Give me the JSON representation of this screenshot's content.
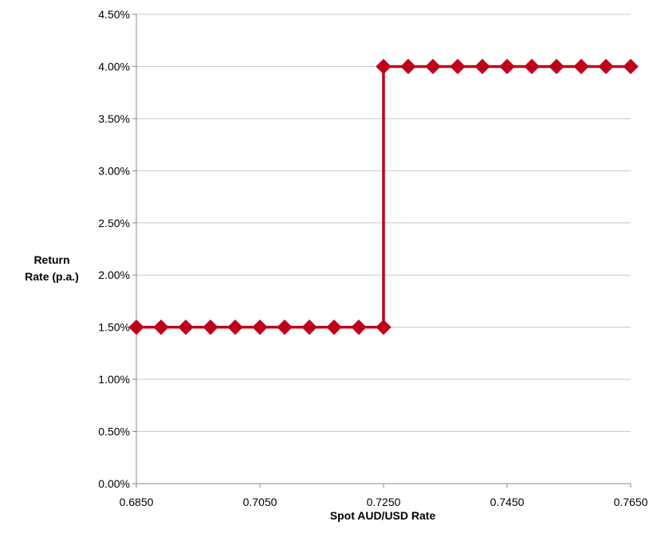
{
  "chart_data": {
    "type": "line",
    "title": "",
    "xlabel": "Spot AUD/USD Rate",
    "ylabel_line1": "Return",
    "ylabel_line2": "Rate (p.a.)",
    "xlim": [
      0.685,
      0.765
    ],
    "ylim": [
      0,
      0.045
    ],
    "x_ticks": [
      0.685,
      0.705,
      0.725,
      0.745,
      0.765
    ],
    "x_tick_labels": [
      "0.6850",
      "0.7050",
      "0.7250",
      "0.7450",
      "0.7650"
    ],
    "y_ticks": [
      0,
      0.005,
      0.01,
      0.015,
      0.02,
      0.025,
      0.03,
      0.035,
      0.04,
      0.045
    ],
    "y_tick_labels": [
      "0.00%",
      "0.50%",
      "1.00%",
      "1.50%",
      "2.00%",
      "2.50%",
      "3.00%",
      "3.50%",
      "4.00%",
      "4.50%"
    ],
    "grid": "horizontal",
    "legend": "none",
    "series": [
      {
        "color": "#c0001a",
        "marker": "diamond",
        "points": [
          {
            "x": 0.685,
            "y": 0.015
          },
          {
            "x": 0.689,
            "y": 0.015
          },
          {
            "x": 0.693,
            "y": 0.015
          },
          {
            "x": 0.697,
            "y": 0.015
          },
          {
            "x": 0.701,
            "y": 0.015
          },
          {
            "x": 0.705,
            "y": 0.015
          },
          {
            "x": 0.709,
            "y": 0.015
          },
          {
            "x": 0.713,
            "y": 0.015
          },
          {
            "x": 0.717,
            "y": 0.015
          },
          {
            "x": 0.721,
            "y": 0.015
          },
          {
            "x": 0.725,
            "y": 0.015
          },
          {
            "x": 0.725,
            "y": 0.04
          },
          {
            "x": 0.729,
            "y": 0.04
          },
          {
            "x": 0.733,
            "y": 0.04
          },
          {
            "x": 0.737,
            "y": 0.04
          },
          {
            "x": 0.741,
            "y": 0.04
          },
          {
            "x": 0.745,
            "y": 0.04
          },
          {
            "x": 0.749,
            "y": 0.04
          },
          {
            "x": 0.753,
            "y": 0.04
          },
          {
            "x": 0.757,
            "y": 0.04
          },
          {
            "x": 0.761,
            "y": 0.04
          },
          {
            "x": 0.765,
            "y": 0.04
          }
        ]
      }
    ]
  }
}
